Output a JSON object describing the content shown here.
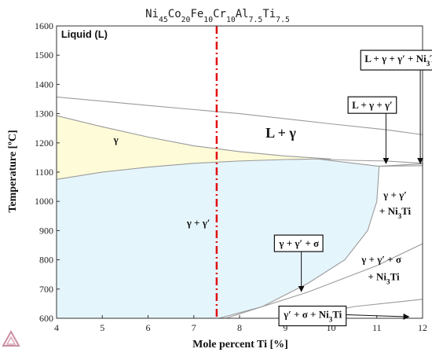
{
  "chart_data": {
    "type": "phase_diagram",
    "title_parts": [
      {
        "text": "Ni",
        "sub": false
      },
      {
        "text": "45",
        "sub": true
      },
      {
        "text": "Co",
        "sub": false
      },
      {
        "text": "20",
        "sub": true
      },
      {
        "text": "Fe",
        "sub": false
      },
      {
        "text": "10",
        "sub": true
      },
      {
        "text": "Cr",
        "sub": false
      },
      {
        "text": "10",
        "sub": true
      },
      {
        "text": "Al",
        "sub": false
      },
      {
        "text": "7.5",
        "sub": true
      },
      {
        "text": "Ti",
        "sub": false
      },
      {
        "text": "7.5",
        "sub": true
      }
    ],
    "xlabel": "Mole percent Ti [%]",
    "ylabel": "Temperature [ºC]",
    "xlim": [
      4,
      12
    ],
    "ylim": [
      600,
      1600
    ],
    "xticks": [
      4,
      5,
      6,
      7,
      8,
      9,
      10,
      11,
      12
    ],
    "yticks": [
      600,
      700,
      800,
      900,
      1000,
      1100,
      1200,
      1300,
      1400,
      1500,
      1600
    ],
    "grid": false,
    "reference_line": {
      "x": 7.5,
      "color": "#e01010",
      "style": "dash-dot"
    },
    "colors": {
      "gamma_fill": "#fdfbd8",
      "gamma_gprime_fill": "#e5f5fc",
      "boundary": "#9a9a9a",
      "axis": "#333333"
    },
    "phase_boundaries": [
      {
        "name": "liquidus",
        "points": [
          [
            4,
            1357
          ],
          [
            6,
            1328
          ],
          [
            8,
            1300
          ],
          [
            10,
            1265
          ],
          [
            11.2,
            1245
          ],
          [
            12,
            1228
          ]
        ]
      },
      {
        "name": "gamma_solidus_upper",
        "points": [
          [
            4,
            1293
          ],
          [
            5,
            1255
          ],
          [
            6,
            1220
          ],
          [
            7,
            1190
          ],
          [
            8,
            1170
          ],
          [
            9,
            1155
          ],
          [
            10,
            1145
          ]
        ]
      },
      {
        "name": "gamma_prime_solvus",
        "points": [
          [
            4,
            1075
          ],
          [
            5,
            1100
          ],
          [
            6,
            1117
          ],
          [
            7,
            1130
          ],
          [
            8,
            1138
          ],
          [
            9,
            1143
          ],
          [
            9.7,
            1145
          ],
          [
            10.5,
            1130
          ],
          [
            11.05,
            1120
          ],
          [
            12,
            1122
          ]
        ]
      },
      {
        "name": "l_gamma_upper",
        "points": [
          [
            9.7,
            1145
          ],
          [
            10.5,
            1140
          ],
          [
            11.2,
            1138
          ],
          [
            12,
            1130
          ]
        ]
      },
      {
        "name": "l_gamma_lower",
        "points": [
          [
            11.05,
            1120
          ],
          [
            11.6,
            1125
          ],
          [
            12,
            1128
          ]
        ]
      },
      {
        "name": "ni3ti_solvus",
        "points": [
          [
            7.55,
            600
          ],
          [
            8.5,
            640
          ],
          [
            9.5,
            720
          ],
          [
            10.3,
            800
          ],
          [
            10.8,
            900
          ],
          [
            11.0,
            1000
          ],
          [
            11.05,
            1120
          ]
        ]
      },
      {
        "name": "sigma_solvus",
        "points": [
          [
            7.7,
            600
          ],
          [
            9.5,
            690
          ],
          [
            11,
            780
          ],
          [
            12,
            855
          ]
        ]
      },
      {
        "name": "sigma_lower",
        "points": [
          [
            9.3,
            600
          ],
          [
            10.5,
            640
          ],
          [
            12,
            665
          ]
        ]
      }
    ],
    "regions": [
      {
        "label_parts": [
          {
            "text": "Liquid (L)",
            "style": "bold"
          }
        ],
        "x": 4.1,
        "y": 1560,
        "boxed": false
      },
      {
        "label_parts": [
          {
            "text": "L + γ"
          }
        ],
        "x": 8.9,
        "y": 1218,
        "boxed": false,
        "size": "large"
      },
      {
        "label_parts": [
          {
            "text": "γ"
          }
        ],
        "x": 5.3,
        "y": 1200,
        "boxed": false
      },
      {
        "label_parts": [
          {
            "text": "γ + γ′"
          }
        ],
        "x": 7.1,
        "y": 915,
        "boxed": false
      },
      {
        "label_parts": [
          {
            "text": "γ + γ′"
          }
        ],
        "x": 11.4,
        "y": 1010,
        "boxed": false
      },
      {
        "label_parts": [
          {
            "text": "+ Ni"
          },
          {
            "text": "3",
            "sub": true
          },
          {
            "text": "Ti"
          }
        ],
        "x": 11.4,
        "y": 955,
        "boxed": false
      },
      {
        "label_parts": [
          {
            "text": "γ + γ′ + σ"
          }
        ],
        "x": 11.1,
        "y": 790,
        "boxed": false
      },
      {
        "label_parts": [
          {
            "text": "+ Ni"
          },
          {
            "text": "3",
            "sub": true
          },
          {
            "text": "Ti"
          }
        ],
        "x": 11.15,
        "y": 730,
        "boxed": false
      }
    ],
    "annotations": [
      {
        "label_parts": [
          {
            "text": "L + γ + γ′ + Ni"
          },
          {
            "text": "3",
            "sub": true
          },
          {
            "text": "Ti"
          }
        ],
        "box_center": [
          11.55,
          1487
        ],
        "arrow_to": [
          11.95,
          1130
        ]
      },
      {
        "label_parts": [
          {
            "text": "L + γ + γ′"
          }
        ],
        "box_center": [
          10.9,
          1328
        ],
        "arrow_to": [
          11.2,
          1130
        ]
      },
      {
        "label_parts": [
          {
            "text": "γ + γ′ + σ"
          }
        ],
        "box_center": [
          9.3,
          855
        ],
        "arrow_to": [
          9.35,
          692
        ]
      },
      {
        "label_parts": [
          {
            "text": "γ′ + σ + Ni"
          },
          {
            "text": "3",
            "sub": true
          },
          {
            "text": "Ti"
          }
        ],
        "box_center": [
          9.6,
          612
        ],
        "arrow_to": [
          11.7,
          605
        ]
      }
    ]
  }
}
